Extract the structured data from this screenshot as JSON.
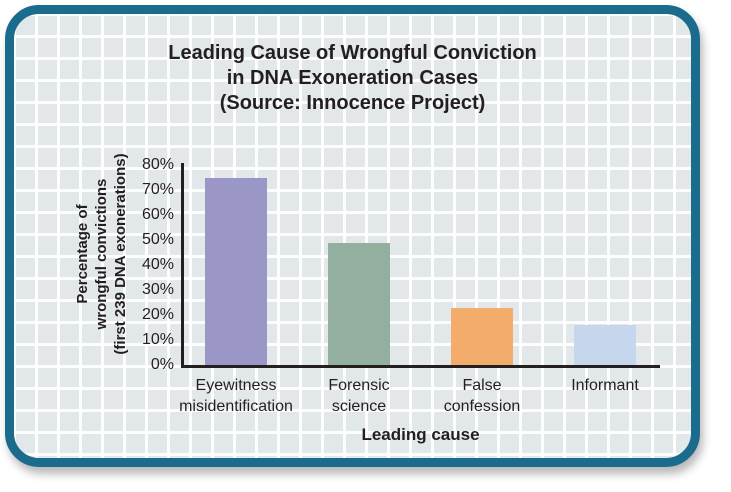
{
  "figure": {
    "title": "Leading Cause of Wrongful Conviction\nin DNA Exoneration Cases\n(Source: Innocence Project)"
  },
  "chart_data": {
    "type": "bar",
    "title": "Leading Cause of Wrongful Conviction in DNA Exoneration Cases (Source: Innocence Project)",
    "categories": [
      "Eyewitness\nmisidentification",
      "Forensic\nscience",
      "False\nconfession",
      "Informant"
    ],
    "values": [
      75,
      49,
      23,
      16
    ],
    "bar_names": [
      "eyewitness-misidentification",
      "forensic-science",
      "false-confession",
      "informant"
    ],
    "bar_colors": [
      "#9a96c6",
      "#93afa0",
      "#f4ac6c",
      "#c6d6ec"
    ],
    "xlabel": "Leading cause",
    "ylabel": "Percentage of\nwrongful convictions\n(first 239 DNA exonerations)",
    "ylim": [
      0,
      80
    ],
    "ytick_step": 10,
    "ytick_suffix": "%",
    "grid": true,
    "legend": false
  },
  "style": {
    "border_teal": "#1a6b8c",
    "card_background": "#e2e7e9",
    "grid_line": "rgba(255,255,255,0.92)",
    "axis_and_text": "#231f20"
  }
}
